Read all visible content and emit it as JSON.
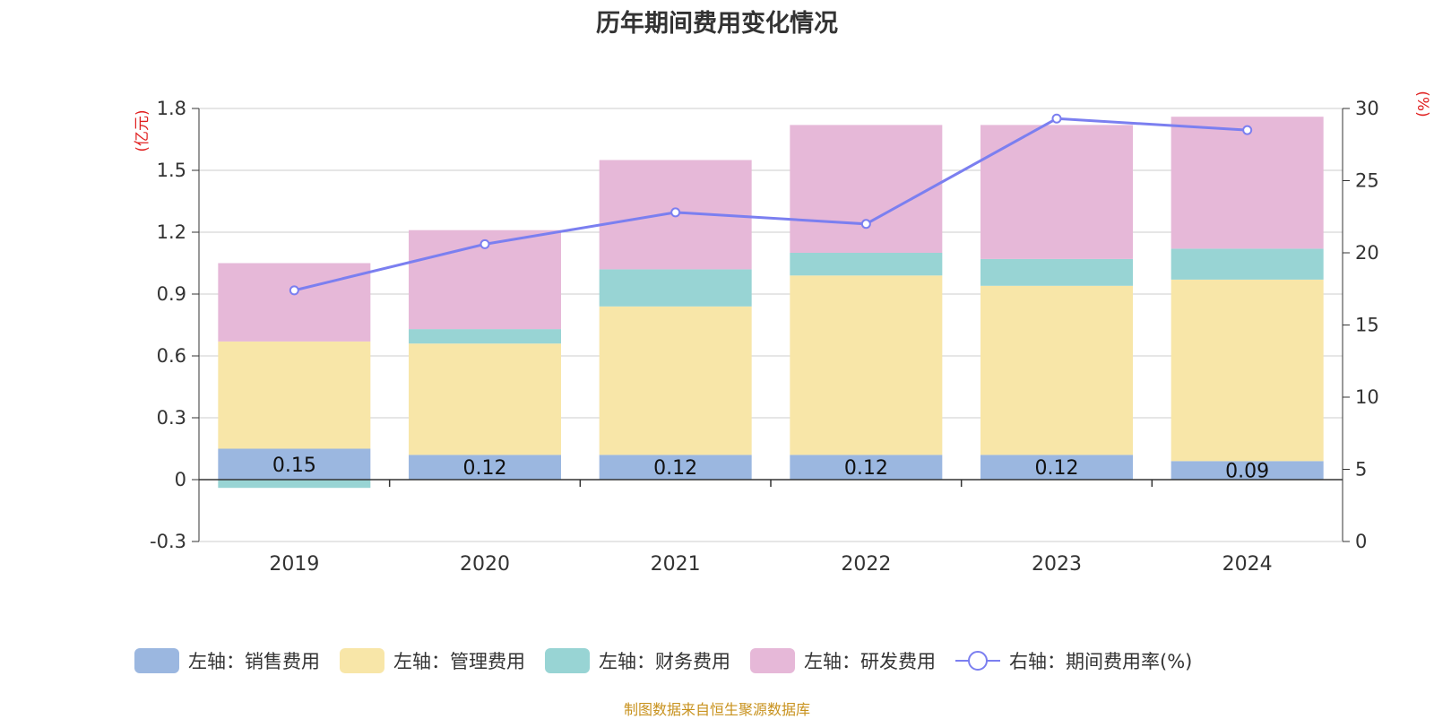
{
  "chart_data": {
    "type": "bar",
    "title": "历年期间费用变化情况",
    "categories": [
      "2019",
      "2020",
      "2021",
      "2022",
      "2023",
      "2024"
    ],
    "left_axis_unit": "(亿元)",
    "right_axis_unit": "(%)",
    "ylim_left": [
      -0.3,
      1.8
    ],
    "yticks_left": [
      "-0.3",
      "0",
      "0.3",
      "0.6",
      "0.9",
      "1.2",
      "1.5",
      "1.8"
    ],
    "ylim_right": [
      0,
      30
    ],
    "yticks_right": [
      "0",
      "5",
      "10",
      "15",
      "20",
      "25",
      "30"
    ],
    "stacked": true,
    "series": [
      {
        "name": "左轴：销售费用",
        "color": "#9bb7e0",
        "values": [
          0.15,
          0.12,
          0.12,
          0.12,
          0.12,
          0.09
        ],
        "labels": [
          "0.15",
          "0.12",
          "0.12",
          "0.12",
          "0.12",
          "0.09"
        ]
      },
      {
        "name": "左轴：管理费用",
        "color": "#f8e6a8",
        "values": [
          0.52,
          0.54,
          0.72,
          0.87,
          0.82,
          0.88
        ]
      },
      {
        "name": "左轴：财务费用",
        "color": "#98d4d4",
        "values": [
          -0.04,
          0.07,
          0.18,
          0.11,
          0.13,
          0.15
        ]
      },
      {
        "name": "左轴：研发费用",
        "color": "#e6b8d8",
        "values": [
          0.38,
          0.48,
          0.53,
          0.62,
          0.65,
          0.64
        ]
      }
    ],
    "line_series": {
      "name": "右轴：期间费用率(%)",
      "color": "#7b7ff0",
      "values": [
        17.4,
        20.6,
        22.8,
        22.0,
        29.3,
        28.5
      ]
    },
    "grid": true,
    "legend_position": "bottom"
  },
  "source_note": "制图数据来自恒生聚源数据库"
}
